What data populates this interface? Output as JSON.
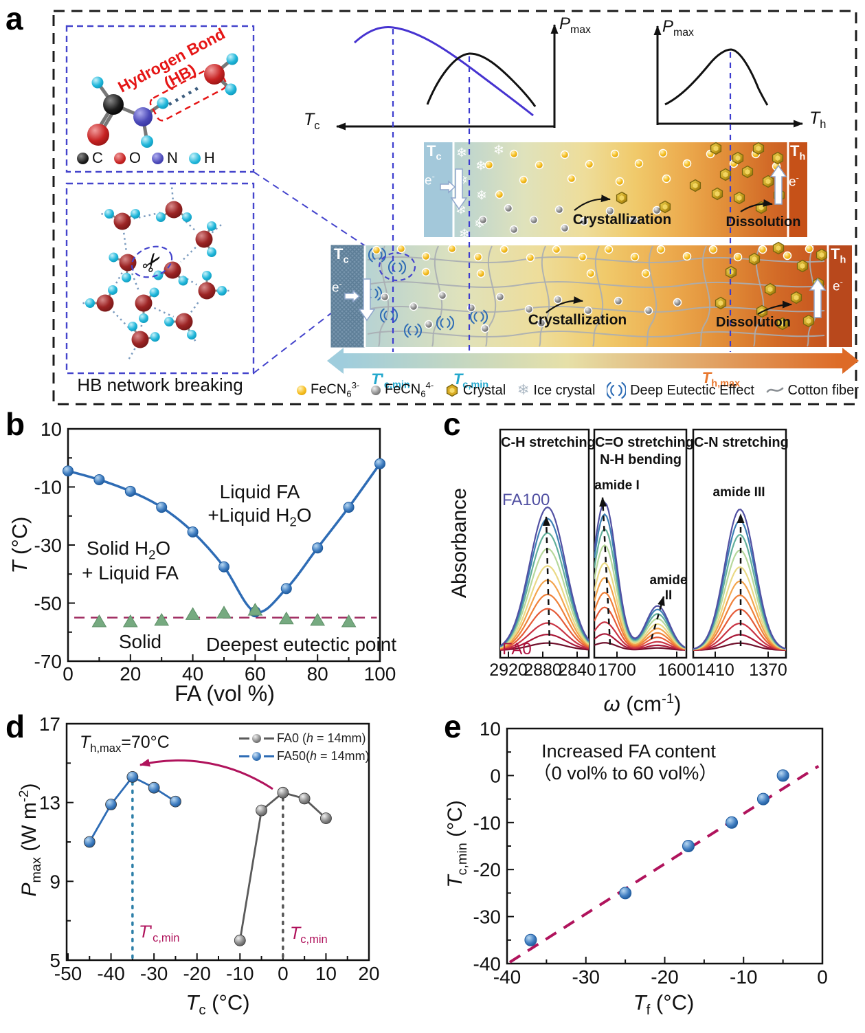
{
  "figure": {
    "letters": {
      "a": "a",
      "b": "b",
      "c": "c",
      "d": "d",
      "e": "e"
    }
  },
  "panel_a": {
    "hb_line1": "Hydrogen Bond",
    "hb_line2": "(HB)",
    "atoms": [
      {
        "symbol": "C",
        "color": "#1c1c1c"
      },
      {
        "symbol": "O",
        "color": "#c62222"
      },
      {
        "symbol": "N",
        "color": "#4b49b8"
      },
      {
        "symbol": "H",
        "color": "#1fb6da"
      }
    ],
    "network_caption": "HB network breaking",
    "mini_axis": {
      "pmax": "*{P}_{max}",
      "tc": "*{T}_{c}",
      "th": "*{T}_{h}"
    },
    "cell": {
      "tc": "T_{c}",
      "th": "T_{h}",
      "electron": "e^{-}",
      "crystallization": "Crystallization",
      "dissolution": "Dissolution"
    },
    "arrow_labels": {
      "tcmin_prime": {
        "text": "*{T}'_{c,min}",
        "color": "#23a8cd"
      },
      "tcmin": {
        "text": "*{T}_{c,min}",
        "color": "#23a8cd"
      },
      "thmax": {
        "text": "*{T}_{h,max}",
        "color": "#e8772e"
      }
    },
    "legend": [
      {
        "icon": "ferricyanide-ion-icon",
        "label": "FeCN_{6}^{3-}"
      },
      {
        "icon": "ferrocyanide-ion-icon",
        "label": "FeCN_{6}^{4-}"
      },
      {
        "icon": "crystal-icon",
        "label": "Crystal"
      },
      {
        "icon": "ice-crystal-icon",
        "label": "Ice crystal"
      },
      {
        "icon": "deep-eutectic-effect-icon",
        "label": "Deep Eutectic Effect"
      },
      {
        "icon": "cotton-fiber-icon",
        "label": "Cotton fiber"
      }
    ]
  },
  "chart_data": [
    {
      "id": "b",
      "type": "line",
      "xlabel": "FA (vol %)",
      "ylabel": "*{T} (°C)",
      "xlim": [
        0,
        100
      ],
      "ylim": [
        -70,
        10
      ],
      "xticks": [
        0,
        20,
        40,
        60,
        80,
        100
      ],
      "yticks": [
        10,
        -10,
        -30,
        -50,
        -70
      ],
      "grid": false,
      "series": [
        {
          "name": "liquidus",
          "color": "#2e6cb5",
          "marker": "sphere",
          "x": [
            0,
            10,
            20,
            30,
            40,
            50,
            60,
            70,
            80,
            90,
            100
          ],
          "y": [
            -4.5,
            -7.5,
            -11.5,
            -17,
            -25.5,
            -37.5,
            -53,
            -45,
            -31,
            -17,
            -2
          ]
        },
        {
          "name": "solidus-triangles",
          "color": "#76aa80",
          "marker": "triangle",
          "x": [
            10,
            20,
            30,
            40,
            50,
            60,
            70,
            80,
            90
          ],
          "y": [
            -56.5,
            -56.5,
            -56,
            -54,
            -53.5,
            -52.5,
            -55.5,
            -56,
            -56.5
          ]
        }
      ],
      "eutectic_line": {
        "y": -55,
        "color": "#a02d62"
      },
      "labels": {
        "region_upper1": "Liquid FA",
        "region_upper2": "+Liquid H_{2}O",
        "region_left1": "Solid H_{2}O",
        "region_left2": "+ Liquid FA",
        "solid": "Solid",
        "eutectic": "Deepest eutectic point"
      }
    },
    {
      "id": "c",
      "type": "spectra",
      "xlabel": "*{ω} (cm^{-1})",
      "ylabel": "Absorbance",
      "sample_first": "FA0",
      "sample_last": "FA100",
      "sample_first_color": "#b0123f",
      "sample_last_color": "#5150a2",
      "colors": [
        "#6f0e2a",
        "#a81636",
        "#c93343",
        "#e55a37",
        "#ef8038",
        "#f3a54d",
        "#ead985",
        "#b6d89b",
        "#62b09a",
        "#3c7fb5",
        "#5150a2"
      ],
      "relative_heights": [
        0.05,
        0.11,
        0.19,
        0.29,
        0.39,
        0.49,
        0.59,
        0.71,
        0.82,
        0.92,
        1.0
      ],
      "panels": [
        {
          "title": "C-H stretching",
          "xticks": [
            2920,
            2880,
            2840
          ],
          "peak_center": 2884
        },
        {
          "title": "C=O stretching",
          "title2": "N-H bending",
          "xticks": [
            1700,
            1600
          ],
          "peak_center": 1678,
          "shoulder_center": 1600,
          "peak_label": "amide I",
          "shoulder_label1": "amide",
          "shoulder_label2": "II"
        },
        {
          "title": "C-N stretching",
          "xticks": [
            1410,
            1370
          ],
          "peak_center": 1386,
          "peak_label": "amide III"
        }
      ]
    },
    {
      "id": "d",
      "type": "line",
      "xlabel": "*{T}_{c} (°C)",
      "ylabel": "*{P}_{max} (W m^{-2})",
      "xlim": [
        -50,
        20
      ],
      "ylim": [
        5,
        17
      ],
      "xticks": [
        -50,
        -40,
        -30,
        -20,
        -10,
        0,
        10,
        20
      ],
      "yticks": [
        5,
        9,
        13,
        17
      ],
      "series": [
        {
          "name": "FA0  (*{h} = 14mm)",
          "color": "#5a5a5a",
          "x": [
            -10,
            -5,
            0,
            5,
            10
          ],
          "y": [
            6.0,
            12.6,
            13.5,
            13.2,
            12.2
          ]
        },
        {
          "name": "FA50(*{h} = 14mm)",
          "color": "#2e6cb5",
          "x": [
            -45,
            -40,
            -35,
            -30,
            -25
          ],
          "y": [
            11.0,
            12.9,
            14.3,
            13.75,
            13.05
          ]
        }
      ],
      "vlines": [
        {
          "x": -35,
          "color": "#2d7fa8",
          "label": "*{T}'_{c,min}"
        },
        {
          "x": 0,
          "color": "#555555",
          "label": "*{T}_{c,min}"
        }
      ],
      "annotation": "*{T}_{h,max}=70°C",
      "annotation_arrow_color": "#b0135c",
      "label_color": "#b0135c"
    },
    {
      "id": "e",
      "type": "scatter",
      "xlabel": "*{T}_{f} (°C)",
      "ylabel": "*{T}_{c,min} (°C)",
      "xlim": [
        -40,
        0
      ],
      "ylim": [
        -40,
        10
      ],
      "xticks": [
        -40,
        -30,
        -20,
        -10,
        0
      ],
      "yticks": [
        10,
        0,
        -10,
        -20,
        -30,
        -40
      ],
      "points": {
        "color": "#3a76b5",
        "x": [
          -37,
          -25,
          -17,
          -11.5,
          -7.5,
          -5
        ],
        "y": [
          -35,
          -25,
          -15,
          -10,
          -5,
          0
        ]
      },
      "trend": {
        "color": "#b0135c",
        "x": [
          -40,
          -0.5
        ],
        "y": [
          -41,
          2
        ]
      },
      "labels": {
        "line1": "Increased FA content",
        "line2": "（0 vol% to 60 vol%）"
      }
    }
  ]
}
